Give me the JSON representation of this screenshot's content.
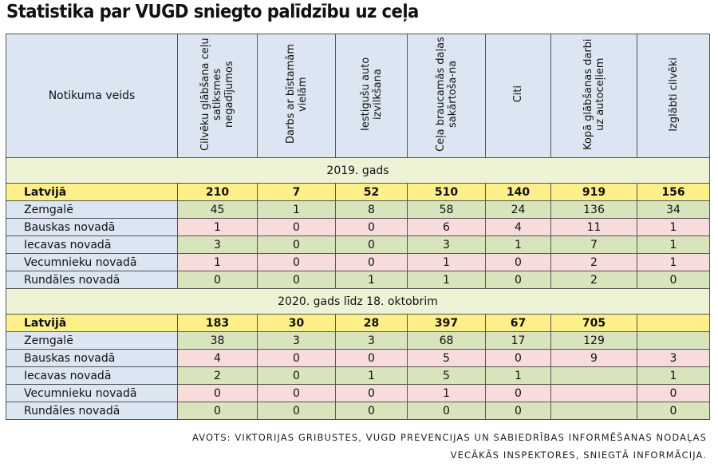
{
  "title": "Statistika par VUGD sniegto palīdzību uz ceļa",
  "table": {
    "corner": "Notikuma veids",
    "columns": [
      "Cilvēku glābšana ceļu satiksmes negadījumos",
      "Darbs ar bīstamām vielām",
      "Iestigušu auto izvilkšana",
      "Ceļa braucamās daļas sakārtoša-na",
      "Citi",
      "Kopā glābšanas darbi uz autoceļiem",
      "Izglābti cilvēki"
    ],
    "sections": [
      {
        "label": "2019. gads",
        "rows": [
          {
            "name": "Latvijā",
            "values": [
              210,
              7,
              52,
              510,
              140,
              919,
              156
            ]
          },
          {
            "name": "Zemgalē",
            "values": [
              45,
              1,
              8,
              58,
              24,
              136,
              34
            ]
          },
          {
            "name": "Bauskas novadā",
            "values": [
              1,
              0,
              0,
              6,
              4,
              11,
              1
            ]
          },
          {
            "name": "Iecavas novadā",
            "values": [
              3,
              0,
              0,
              3,
              1,
              7,
              1
            ]
          },
          {
            "name": "Vecumnieku novadā",
            "values": [
              1,
              0,
              0,
              1,
              0,
              2,
              1
            ]
          },
          {
            "name": "Rundāles novadā",
            "values": [
              0,
              0,
              1,
              1,
              0,
              2,
              0
            ]
          }
        ]
      },
      {
        "label": "2020. gads līdz 18. oktobrim",
        "rows": [
          {
            "name": "Latvijā",
            "values": [
              183,
              30,
              28,
              397,
              67,
              705,
              null
            ]
          },
          {
            "name": "Zemgalē",
            "values": [
              38,
              3,
              3,
              68,
              17,
              129,
              null
            ]
          },
          {
            "name": "Bauskas novadā",
            "values": [
              4,
              0,
              0,
              5,
              0,
              9,
              3
            ]
          },
          {
            "name": "Iecavas novadā",
            "values": [
              2,
              0,
              1,
              5,
              1,
              null,
              1
            ]
          },
          {
            "name": "Vecumnieku novadā",
            "values": [
              0,
              0,
              0,
              1,
              0,
              null,
              0
            ]
          },
          {
            "name": "Rundāles novadā",
            "values": [
              0,
              0,
              0,
              0,
              0,
              null,
              0
            ]
          }
        ]
      }
    ]
  },
  "source": "AVOTS: VIKTORIJAS GRIBUSTES, VUGD PREVENCIJAS UN SABIEDRĪBAS INFORMĒŠANAS NODAĻAS VECĀKĀS INSPEKTORES, SNIEGTĀ INFORMĀCIJA."
}
